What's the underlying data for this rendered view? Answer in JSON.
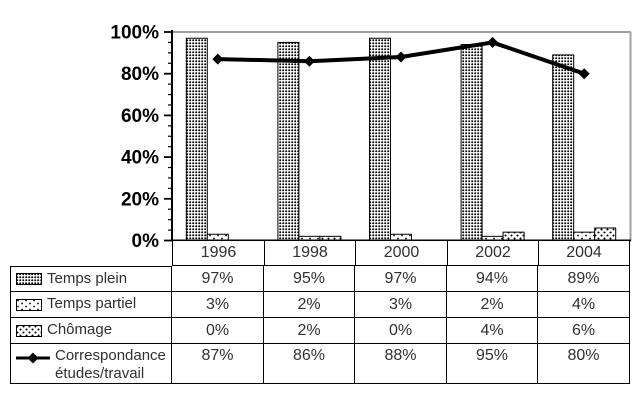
{
  "chart_data": {
    "type": "bar",
    "subtype": "bars-with-line-overlay",
    "categories": [
      "1996",
      "1998",
      "2000",
      "2002",
      "2004"
    ],
    "series": [
      {
        "name": "Temps plein",
        "kind": "bar",
        "pattern": "dense-dots",
        "values": [
          97,
          95,
          97,
          94,
          89
        ]
      },
      {
        "name": "Temps partiel",
        "kind": "bar",
        "pattern": "sparse-dots",
        "values": [
          3,
          2,
          3,
          2,
          4
        ]
      },
      {
        "name": "Chômage",
        "kind": "bar",
        "pattern": "diagonal-dots",
        "values": [
          0,
          2,
          0,
          4,
          6
        ]
      },
      {
        "name": "Correspondance études/travail",
        "kind": "line",
        "marker": "diamond",
        "values": [
          87,
          86,
          88,
          95,
          80
        ]
      }
    ],
    "title": "",
    "xlabel": "",
    "ylabel": "",
    "ylim": [
      0,
      100
    ],
    "y_ticks": [
      "0%",
      "20%",
      "40%",
      "60%",
      "80%",
      "100%"
    ],
    "minor_tick_step": 5,
    "major_tick_step": 20,
    "grid": "top-border-only",
    "legend_position": "data-table-left-column"
  },
  "table": {
    "years": [
      "1996",
      "1998",
      "2000",
      "2002",
      "2004"
    ],
    "rows": [
      {
        "label": "Temps plein",
        "swatch": "dense-dots-swatch",
        "values": [
          "97%",
          "95%",
          "97%",
          "94%",
          "89%"
        ]
      },
      {
        "label": "Temps partiel",
        "swatch": "sparse-dots-swatch",
        "values": [
          "3%",
          "2%",
          "3%",
          "2%",
          "4%"
        ]
      },
      {
        "label": "Chômage",
        "swatch": "diagonal-dots-swatch",
        "values": [
          "0%",
          "2%",
          "0%",
          "4%",
          "6%"
        ]
      },
      {
        "label": "Correspondance études/travail",
        "swatch": "line-diamond-icon",
        "values": [
          "87%",
          "86%",
          "88%",
          "95%",
          "80%"
        ]
      }
    ]
  },
  "colors": {
    "ink": "#000000",
    "plot_border_gray": "#a0a0a0",
    "table_text": "#303030",
    "background": "#ffffff"
  }
}
